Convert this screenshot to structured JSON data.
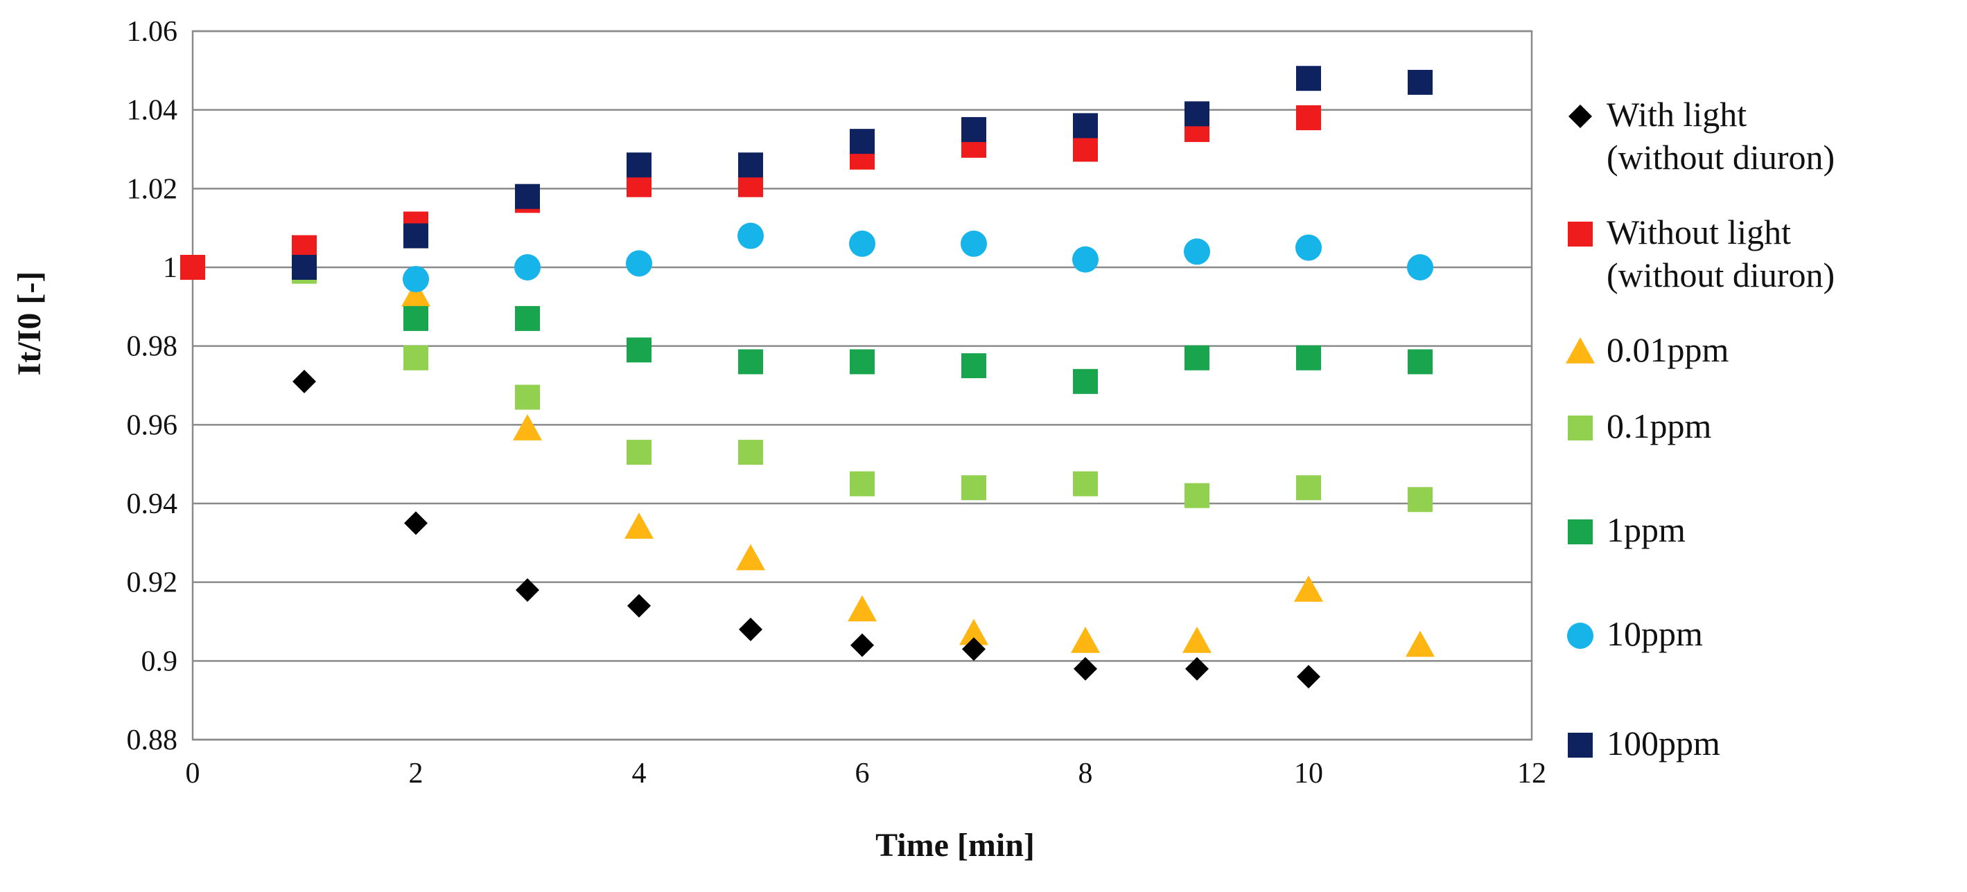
{
  "chart_data": {
    "type": "scatter",
    "title": "",
    "xlabel": "Time [min]",
    "ylabel": "It/I0 [-]",
    "xlim": [
      0,
      12
    ],
    "ylim": [
      0.88,
      1.06
    ],
    "x_ticks": [
      "0",
      "2",
      "4",
      "6",
      "8",
      "10",
      "12"
    ],
    "y_ticks": [
      "0.88",
      "0.9",
      "0.92",
      "0.94",
      "0.96",
      "0.98",
      "1",
      "1.02",
      "1.04",
      "1.06"
    ],
    "grid": true,
    "legend_position": "right",
    "series": [
      {
        "name": "With light (without diuron)",
        "legend_lines": [
          "With light",
          "(without diuron)"
        ],
        "marker": "diamond",
        "color": "#000000",
        "points": [
          [
            1,
            0.971
          ],
          [
            2,
            0.935
          ],
          [
            3,
            0.918
          ],
          [
            4,
            0.914
          ],
          [
            5,
            0.908
          ],
          [
            6,
            0.904
          ],
          [
            7,
            0.903
          ],
          [
            8,
            0.898
          ],
          [
            9,
            0.898
          ],
          [
            10,
            0.896
          ]
        ]
      },
      {
        "name": "Without light (without diuron)",
        "legend_lines": [
          "Without light",
          "(without diuron)"
        ],
        "marker": "square",
        "color": "#ee1c1c",
        "points": [
          [
            0,
            1.0
          ],
          [
            1,
            1.005
          ],
          [
            2,
            1.011
          ],
          [
            3,
            1.017
          ],
          [
            4,
            1.021
          ],
          [
            5,
            1.021
          ],
          [
            6,
            1.028
          ],
          [
            7,
            1.031
          ],
          [
            8,
            1.03
          ],
          [
            9,
            1.035
          ],
          [
            10,
            1.038
          ]
        ]
      },
      {
        "name": "0.01ppm",
        "legend_lines": [
          "0.01ppm"
        ],
        "marker": "triangle",
        "color": "#ffb612",
        "points": [
          [
            2,
            0.993
          ],
          [
            3,
            0.959
          ],
          [
            4,
            0.934
          ],
          [
            5,
            0.926
          ],
          [
            6,
            0.913
          ],
          [
            7,
            0.907
          ],
          [
            8,
            0.905
          ],
          [
            9,
            0.905
          ],
          [
            10,
            0.918
          ],
          [
            11,
            0.904
          ]
        ]
      },
      {
        "name": "0.1ppm",
        "legend_lines": [
          "0.1ppm"
        ],
        "marker": "square",
        "color": "#92d050",
        "points": [
          [
            1,
            0.999
          ],
          [
            2,
            0.977
          ],
          [
            3,
            0.967
          ],
          [
            4,
            0.953
          ],
          [
            5,
            0.953
          ],
          [
            6,
            0.945
          ],
          [
            7,
            0.944
          ],
          [
            8,
            0.945
          ],
          [
            9,
            0.942
          ],
          [
            10,
            0.944
          ],
          [
            11,
            0.941
          ]
        ]
      },
      {
        "name": "1ppm",
        "legend_lines": [
          "1ppm"
        ],
        "marker": "square",
        "color": "#19a44e",
        "points": [
          [
            2,
            0.987
          ],
          [
            3,
            0.987
          ],
          [
            4,
            0.979
          ],
          [
            5,
            0.976
          ],
          [
            6,
            0.976
          ],
          [
            7,
            0.975
          ],
          [
            8,
            0.971
          ],
          [
            9,
            0.977
          ],
          [
            10,
            0.977
          ],
          [
            11,
            0.976
          ]
        ]
      },
      {
        "name": "10ppm",
        "legend_lines": [
          "10ppm"
        ],
        "marker": "circle",
        "color": "#17b4ea",
        "points": [
          [
            2,
            0.997
          ],
          [
            3,
            1.0
          ],
          [
            4,
            1.001
          ],
          [
            5,
            1.008
          ],
          [
            6,
            1.006
          ],
          [
            7,
            1.006
          ],
          [
            8,
            1.002
          ],
          [
            9,
            1.004
          ],
          [
            10,
            1.005
          ],
          [
            11,
            1.0
          ]
        ]
      },
      {
        "name": "100ppm",
        "legend_lines": [
          "100ppm"
        ],
        "marker": "square",
        "color": "#0f2260",
        "points": [
          [
            1,
            1.0
          ],
          [
            2,
            1.008
          ],
          [
            3,
            1.018
          ],
          [
            4,
            1.026
          ],
          [
            5,
            1.026
          ],
          [
            6,
            1.032
          ],
          [
            7,
            1.035
          ],
          [
            8,
            1.036
          ],
          [
            9,
            1.039
          ],
          [
            10,
            1.048
          ],
          [
            11,
            1.047
          ]
        ]
      }
    ]
  }
}
